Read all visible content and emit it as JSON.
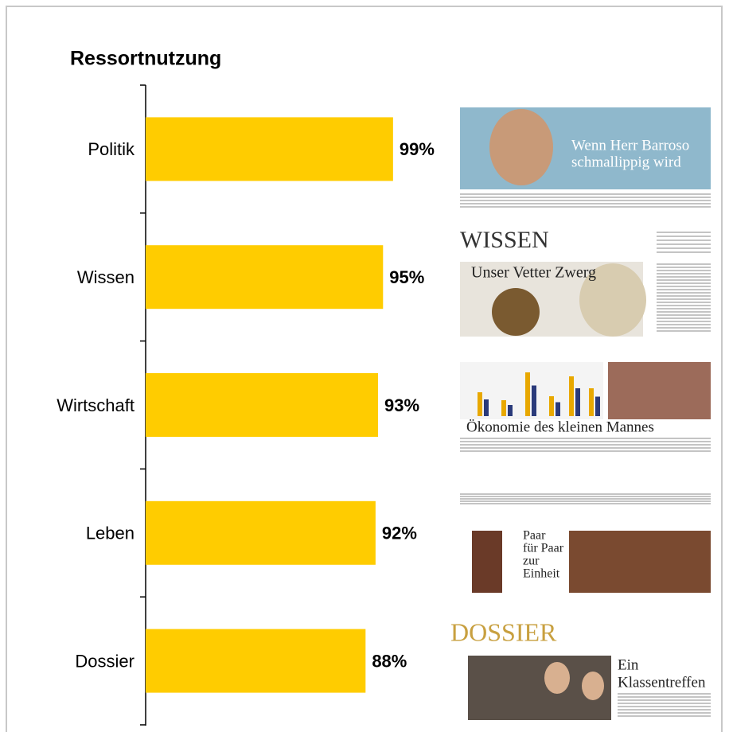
{
  "chart_data": {
    "type": "hbar",
    "title": "Ressortnutzung",
    "categories": [
      "Politik",
      "Wissen",
      "Wirtschaft",
      "Leben",
      "Dossier"
    ],
    "values": [
      99,
      95,
      93,
      92,
      88
    ],
    "value_labels": [
      "99%",
      "95%",
      "93%",
      "92%",
      "88%"
    ],
    "color": "#ffcc00",
    "xlim": [
      0,
      100
    ],
    "thumbnails": [
      {
        "lines": [
          "Wenn Herr Barroso",
          "schmallippig wird"
        ]
      },
      {
        "masthead": "WISSEN",
        "lines": [
          "Unser Vetter Zwerg"
        ]
      },
      {
        "lines": [
          "Ökonomie des kleinen Mannes"
        ]
      },
      {
        "lines": [
          "Paar",
          "für Paar",
          "zur",
          "Einheit"
        ]
      },
      {
        "masthead": "DOSSIER",
        "lines": [
          "Ein",
          "Klassentreffen"
        ]
      }
    ]
  }
}
